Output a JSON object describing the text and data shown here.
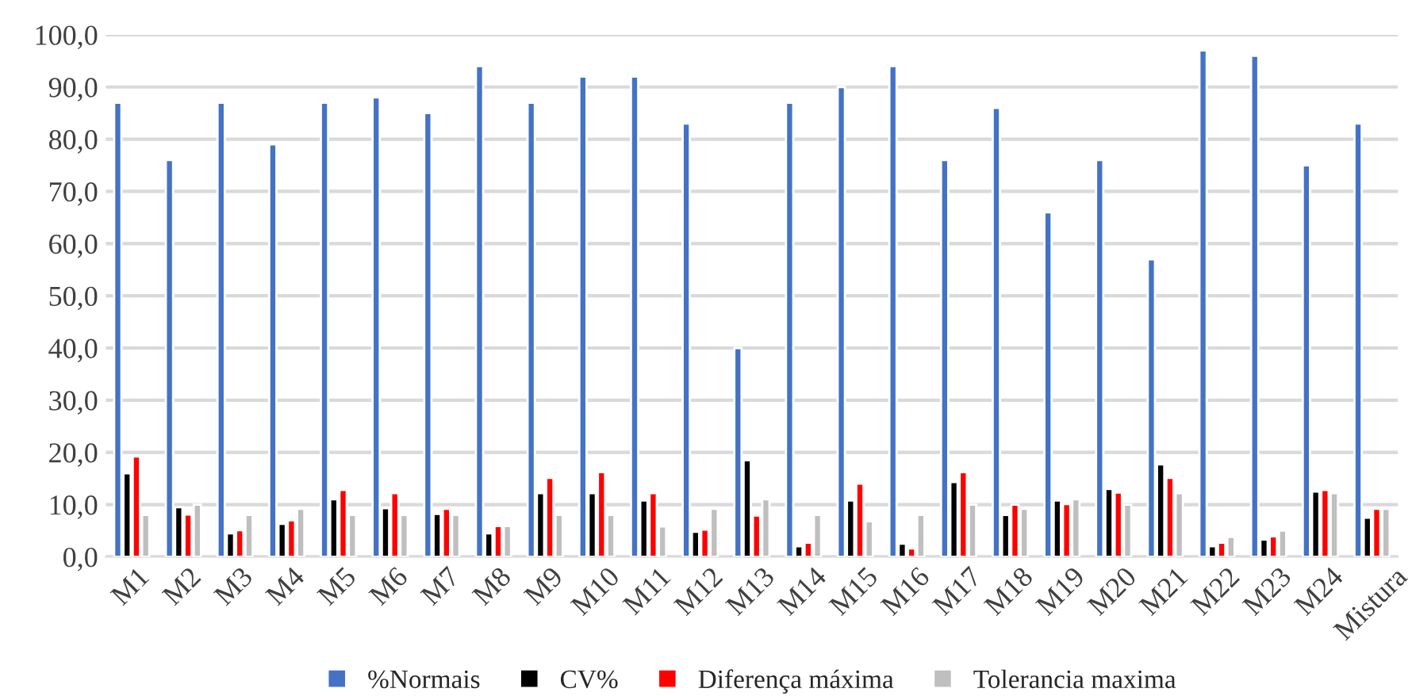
{
  "chart_data": {
    "type": "bar",
    "categories": [
      "M1",
      "M2",
      "M3",
      "M4",
      "M5",
      "M6",
      "M7",
      "M8",
      "M9",
      "M10",
      "M11",
      "M12",
      "M13",
      "M14",
      "M15",
      "M16",
      "M17",
      "M18",
      "M19",
      "M20",
      "M21",
      "M22",
      "M23",
      "M24",
      "Mistura"
    ],
    "series": [
      {
        "name": "%Normais",
        "color": "#4472c4",
        "values": [
          87,
          76,
          87,
          79,
          87,
          88,
          85,
          94,
          87,
          92,
          92,
          83,
          40,
          87,
          90,
          94,
          76,
          86,
          66,
          76,
          57,
          97,
          96,
          75,
          83
        ]
      },
      {
        "name": "CV%",
        "color": "#000000",
        "values": [
          16,
          9.5,
          4.5,
          6.3,
          11,
          9.3,
          8.2,
          4.5,
          12.2,
          12.2,
          10.8,
          4.8,
          18.5,
          2,
          10.8,
          2.5,
          14.3,
          8,
          10.8,
          13,
          17.7,
          2,
          3.3,
          12.5,
          7.5
        ]
      },
      {
        "name": "Diferença máxima",
        "color": "#ff0000",
        "values": [
          19.2,
          8.1,
          5.1,
          7,
          12.8,
          12.2,
          9.2,
          5.9,
          15.1,
          16.2,
          12.2,
          5.2,
          7.9,
          2.7,
          14,
          1.6,
          16.2,
          10,
          10.1,
          12.3,
          15.1,
          2.7,
          3.9,
          12.8,
          9.2
        ]
      },
      {
        "name": "Tolerancia maxima",
        "color": "#bfbfbf",
        "values": [
          8,
          10,
          8,
          9.2,
          8,
          8,
          8,
          5.9,
          8,
          8,
          5.8,
          9.2,
          11,
          8,
          6.8,
          8,
          10,
          9.2,
          11,
          10,
          12.2,
          3.8,
          5,
          12.2,
          9.2
        ]
      }
    ],
    "ylim": [
      0,
      100
    ],
    "yticks": [
      {
        "value": 0,
        "label": "0,0"
      },
      {
        "value": 10,
        "label": "10,0"
      },
      {
        "value": 20,
        "label": "20,0"
      },
      {
        "value": 30,
        "label": "30,0"
      },
      {
        "value": 40,
        "label": "40,0"
      },
      {
        "value": 50,
        "label": "50,0"
      },
      {
        "value": 60,
        "label": "60,0"
      },
      {
        "value": 70,
        "label": "70,0"
      },
      {
        "value": 80,
        "label": "80,0"
      },
      {
        "value": 90,
        "label": "90,0"
      },
      {
        "value": 100,
        "label": "100,0"
      }
    ],
    "grid": "y",
    "legend": "bottom"
  }
}
